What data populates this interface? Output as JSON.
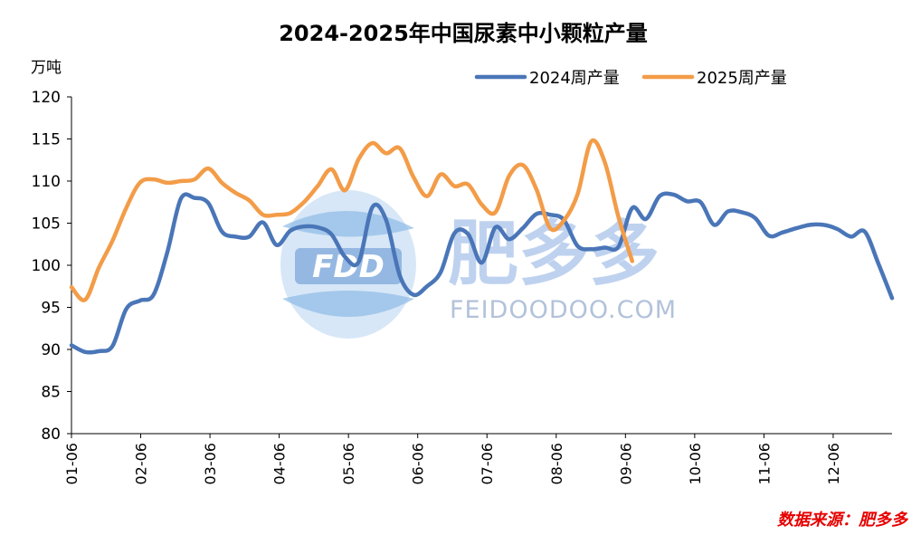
{
  "chart_data": {
    "type": "line",
    "title": "2024-2025年中国尿素中小颗粒产量",
    "ylabel": "万吨",
    "ylim": [
      80,
      120
    ],
    "yticks": [
      "80",
      "85",
      "90",
      "95",
      "100",
      "105",
      "110",
      "115",
      "120"
    ],
    "xticks": [
      "01-06",
      "02-06",
      "03-06",
      "04-06",
      "05-06",
      "06-06",
      "07-06",
      "08-06",
      "09-06",
      "10-06",
      "11-06",
      "12-06"
    ],
    "legend_position": "top-right",
    "x_unit": "week",
    "series": [
      {
        "name": "2024周产量",
        "color": "#4a76b8",
        "values": [
          90.5,
          89.7,
          89.8,
          90.4,
          94.8,
          95.8,
          96.5,
          101.5,
          107.9,
          108.0,
          107.4,
          104.0,
          103.4,
          103.4,
          105.1,
          102.4,
          104.1,
          104.6,
          104.5,
          103.7,
          101.0,
          100.4,
          106.9,
          105.4,
          98.8,
          96.5,
          97.5,
          99.2,
          103.8,
          103.7,
          100.3,
          104.5,
          103.1,
          104.4,
          106.1,
          106.0,
          105.4,
          102.3,
          101.9,
          102.1,
          102.2,
          106.8,
          105.5,
          108.2,
          108.4,
          107.6,
          107.5,
          104.8,
          106.4,
          106.3,
          105.6,
          103.5,
          103.9,
          104.4,
          104.8,
          104.8,
          104.3,
          103.4,
          104.0,
          100.2,
          96.1
        ]
      },
      {
        "name": "2025周产量",
        "color": "#f39c48",
        "values": [
          97.4,
          95.9,
          99.7,
          102.9,
          106.8,
          109.8,
          110.2,
          109.8,
          110.0,
          110.2,
          111.5,
          109.8,
          108.6,
          107.7,
          106.0,
          106.0,
          106.2,
          107.5,
          109.4,
          111.4,
          108.9,
          112.6,
          114.5,
          113.3,
          113.9,
          110.5,
          108.2,
          110.8,
          109.4,
          109.6,
          107.2,
          106.3,
          110.6,
          111.9,
          109.0,
          104.4,
          105.3,
          108.4,
          114.7,
          112.2,
          105.7,
          100.5
        ]
      }
    ]
  },
  "watermark": {
    "logo_text": "FDD",
    "brand_text": "肥多多",
    "site_text": "FEIDOODOO.COM"
  },
  "source": "数据来源：肥多多"
}
